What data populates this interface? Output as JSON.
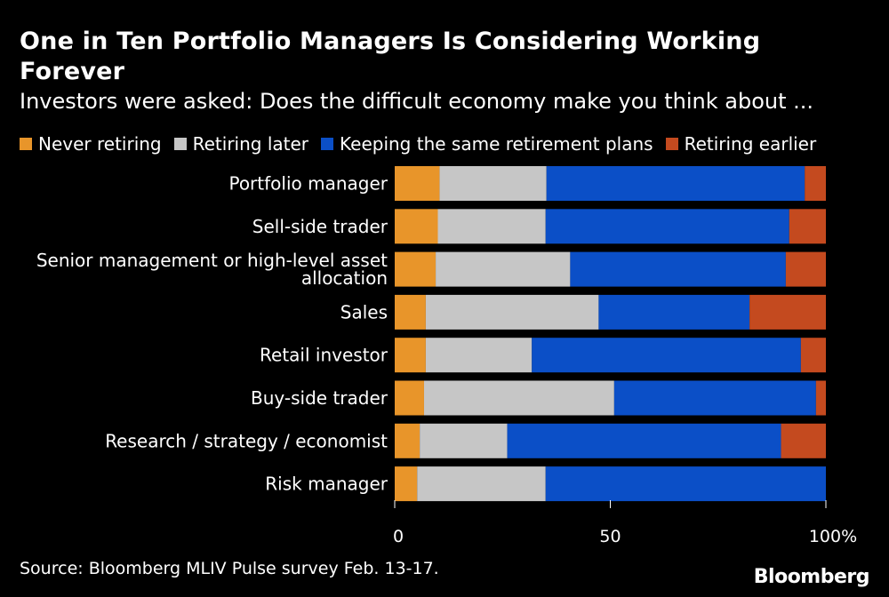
{
  "header": {
    "title": "One in Ten Portfolio Managers Is Considering Working Forever",
    "subtitle": "Investors were asked: Does the difficult economy make you think about ..."
  },
  "legend": [
    {
      "label": "Never retiring",
      "color": "#e8952a"
    },
    {
      "label": "Retiring later",
      "color": "#c6c6c6"
    },
    {
      "label": "Keeping the same retirement plans",
      "color": "#0b4fc7"
    },
    {
      "label": "Retiring earlier",
      "color": "#c44a1f"
    }
  ],
  "chart_data": {
    "type": "bar",
    "orientation": "horizontal",
    "stacked": true,
    "title": "One in Ten Portfolio Managers Is Considering Working Forever",
    "categories": [
      [
        "Portfolio manager"
      ],
      [
        "Sell-side trader"
      ],
      [
        "Senior management or high-level asset",
        "allocation"
      ],
      [
        "Sales"
      ],
      [
        "Retail investor"
      ],
      [
        "Buy-side trader"
      ],
      [
        "Research / strategy / economist"
      ],
      [
        "Risk manager"
      ]
    ],
    "series": [
      {
        "name": "Never retiring",
        "color": "#e8952a",
        "values": [
          10.4,
          10,
          9.5,
          7.2,
          7.2,
          6.8,
          5.8,
          5.2
        ]
      },
      {
        "name": "Retiring later",
        "color": "#c6c6c6",
        "values": [
          24.8,
          25,
          31.2,
          40.1,
          24.6,
          44.1,
          20.3,
          29.8
        ]
      },
      {
        "name": "Keeping the same retirement plans",
        "color": "#0b4fc7",
        "values": [
          59.9,
          56.5,
          50,
          35,
          62.4,
          46.8,
          63.5,
          65
        ]
      },
      {
        "name": "Retiring earlier",
        "color": "#c44a1f",
        "values": [
          4.9,
          8.5,
          9.3,
          17.7,
          5.8,
          2.3,
          10.4,
          0
        ]
      }
    ],
    "xlim": [
      0,
      100
    ],
    "xticks": [
      {
        "value": 0,
        "label": "0"
      },
      {
        "value": 50,
        "label": "50"
      },
      {
        "value": 100,
        "label": "100%"
      }
    ]
  },
  "footer": {
    "source": "Source: Bloomberg MLIV Pulse survey Feb. 13-17.",
    "brand": "Bloomberg"
  }
}
